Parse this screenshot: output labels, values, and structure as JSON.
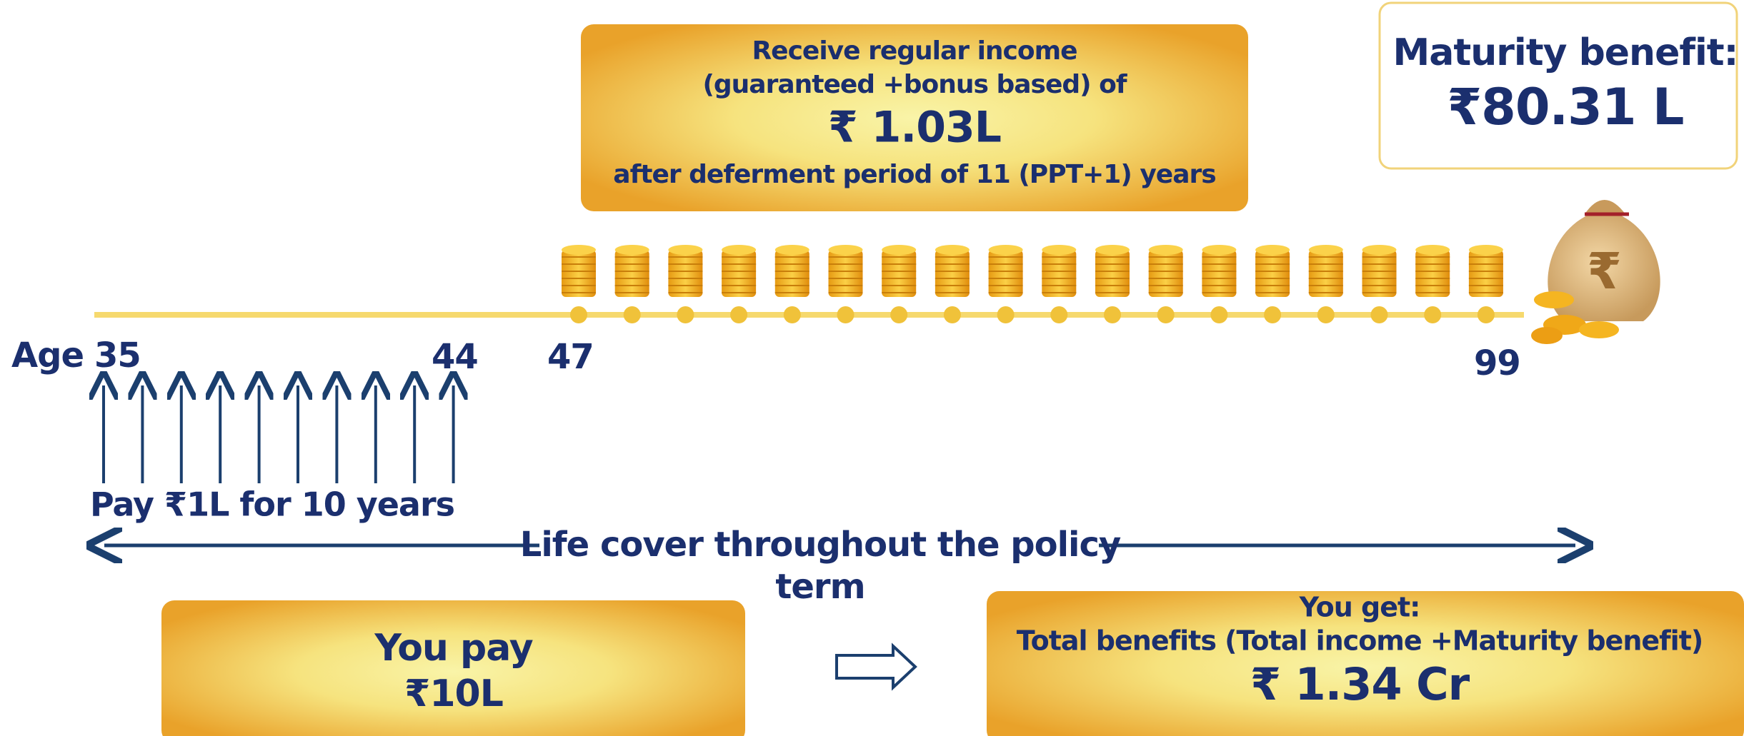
{
  "income_box": {
    "line1": "Receive regular income",
    "line2": "(guaranteed +bonus based) of",
    "amount": "₹ 1.03L",
    "line3": "after deferment period of 11 (PPT+1) years"
  },
  "maturity_box": {
    "title": "Maturity benefit:",
    "amount": "₹80.31 L"
  },
  "timeline": {
    "age_label": "Age",
    "ages": [
      "35",
      "44",
      "47",
      "99"
    ]
  },
  "payment": "Pay ₹1L for 10 years",
  "life_cover": {
    "line1": "Life cover throughout the policy",
    "line2": "term"
  },
  "you_pay_box": {
    "title": "You pay",
    "amount": "₹10L"
  },
  "you_get_box": {
    "title": "You get:",
    "subtitle": "Total benefits (Total income +Maturity benefit)",
    "amount": "₹ 1.34 Cr"
  }
}
